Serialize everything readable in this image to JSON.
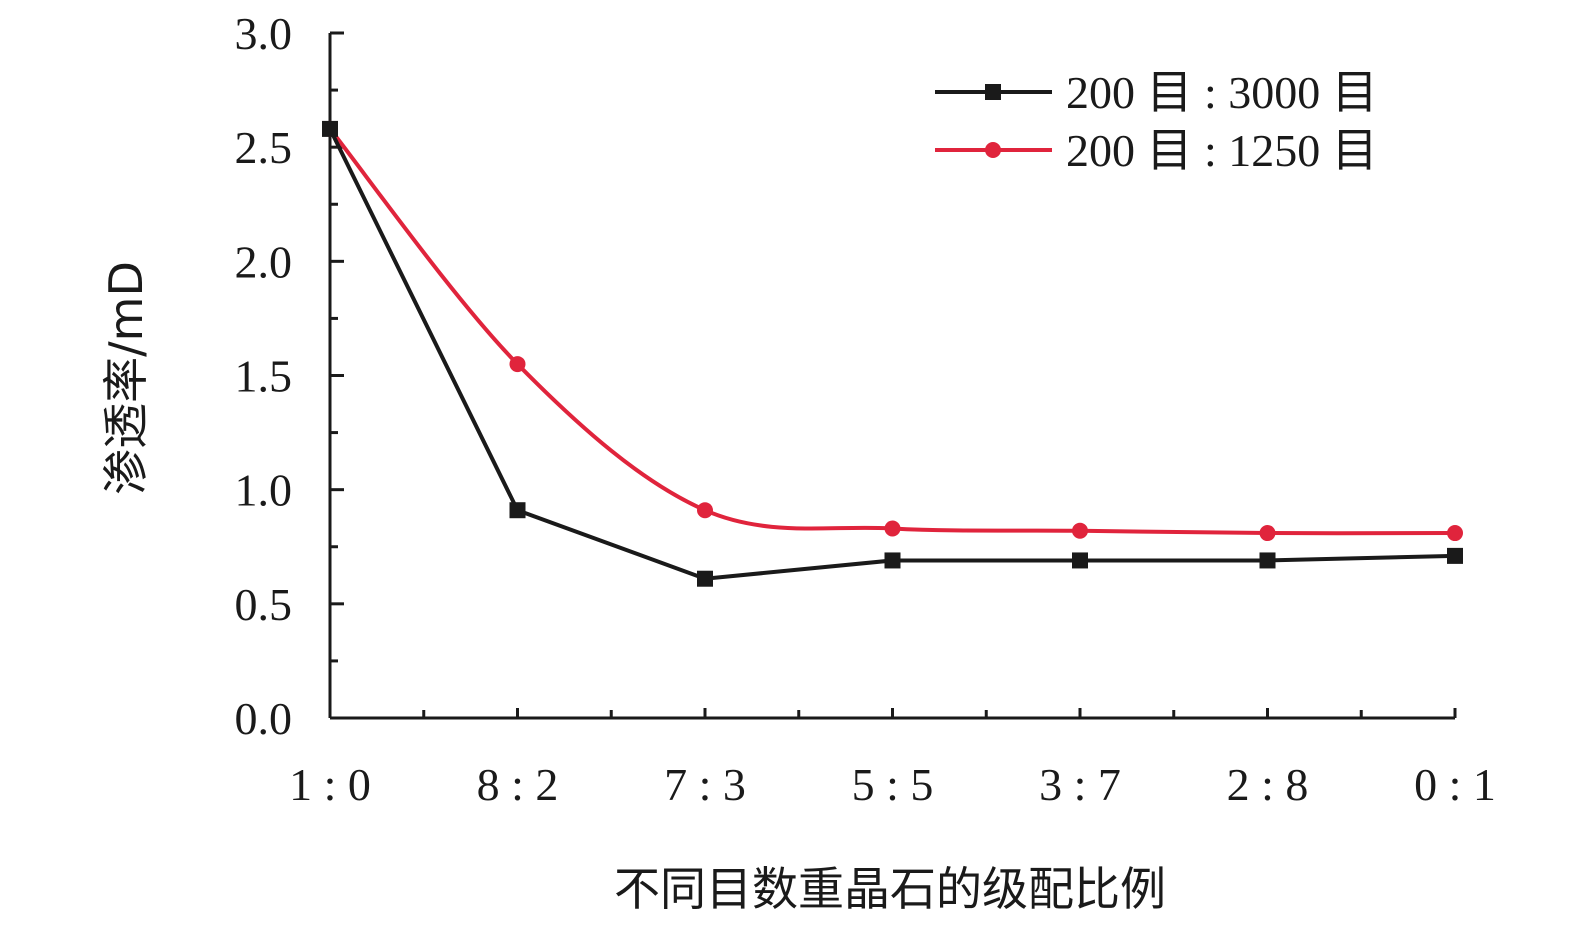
{
  "chart_data": {
    "type": "line",
    "title": "",
    "xlabel": "不同目数重晶石的级配比例",
    "ylabel": "渗透率/mD",
    "categories": [
      "1 : 0",
      "8 : 2",
      "7 : 3",
      "5 : 5",
      "3 : 7",
      "2 : 8",
      "0 : 1"
    ],
    "ylim": [
      0.0,
      3.0
    ],
    "yticks": [
      "0.0",
      "0.5",
      "1.0",
      "1.5",
      "2.0",
      "2.5",
      "3.0"
    ],
    "grid": false,
    "legend_position": "top-right",
    "series": [
      {
        "name": "200 目 : 3000 目",
        "color": "#1a1a1a",
        "marker": "square",
        "smooth": false,
        "values": [
          2.58,
          0.91,
          0.61,
          0.69,
          0.69,
          0.69,
          0.71
        ]
      },
      {
        "name": "200 目 : 1250 目",
        "color": "#e0243c",
        "marker": "circle",
        "smooth": true,
        "values": [
          2.58,
          1.55,
          0.91,
          0.83,
          0.82,
          0.81,
          0.81
        ]
      }
    ]
  }
}
